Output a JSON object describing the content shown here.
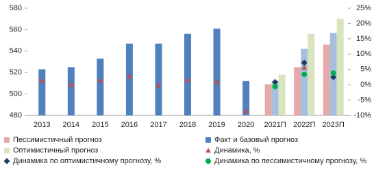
{
  "chart_data": {
    "type": "bar_line",
    "categories": [
      "2013",
      "2014",
      "2015",
      "2016",
      "2017",
      "2018",
      "2019",
      "2020",
      "2021П",
      "2022П",
      "2023П"
    ],
    "ylim": [
      480,
      580
    ],
    "yticks": [
      480,
      500,
      520,
      540,
      560,
      580
    ],
    "y2lim": [
      -10,
      25
    ],
    "y2ticks": [
      {
        "value": -10,
        "label": "-10%"
      },
      {
        "value": -5,
        "label": "-5%"
      },
      {
        "value": 0,
        "label": "0%"
      },
      {
        "value": 5,
        "label": "5%"
      },
      {
        "value": 10,
        "label": "10%"
      },
      {
        "value": 15,
        "label": "15%"
      },
      {
        "value": 20,
        "label": "20%"
      },
      {
        "value": 25,
        "label": "25%"
      }
    ],
    "series": [
      {
        "name": "Пессимистичный прогноз",
        "kind": "bar",
        "slot": -1,
        "color": "#e6a9a9",
        "values": [
          null,
          null,
          null,
          null,
          null,
          null,
          null,
          null,
          509,
          525,
          546
        ]
      },
      {
        "name": "Факт и базовый прогноз",
        "kind": "bar",
        "slot": 0,
        "color": "#4f81bd",
        "colors": [
          "#4f81bd",
          "#4f81bd",
          "#4f81bd",
          "#4f81bd",
          "#4f81bd",
          "#4f81bd",
          "#4f81bd",
          "#4f81bd",
          "#a7bfdf",
          "#a7bfdf",
          "#a7bfdf"
        ],
        "values": [
          523,
          525,
          533,
          547,
          547,
          556,
          561,
          512,
          512,
          542,
          557
        ]
      },
      {
        "name": "Оптимистичный прогноз",
        "kind": "bar",
        "slot": 1,
        "color": "#d7e4bd",
        "values": [
          null,
          null,
          null,
          null,
          null,
          null,
          null,
          null,
          518,
          556,
          570
        ]
      },
      {
        "name": "Динамика, %",
        "kind": "triangle",
        "axis": "y2",
        "color": "#c0504d",
        "values": [
          1.4,
          0.0,
          1.4,
          2.7,
          -0.2,
          1.6,
          0.9,
          -8.7,
          0.1,
          5.6,
          2.8
        ]
      },
      {
        "name": "Динамика по оптимистичному прогнозу, %",
        "kind": "diamond",
        "axis": "y2",
        "color": "#1f3864",
        "values": [
          null,
          null,
          null,
          null,
          null,
          null,
          null,
          null,
          0.9,
          7.2,
          2.5
        ]
      },
      {
        "name": "Динамика по пессимистичному прогнозу, %",
        "kind": "circle",
        "axis": "y2",
        "color": "#00b050",
        "values": [
          null,
          null,
          null,
          null,
          null,
          null,
          null,
          null,
          -0.6,
          3.4,
          3.8
        ]
      }
    ]
  }
}
